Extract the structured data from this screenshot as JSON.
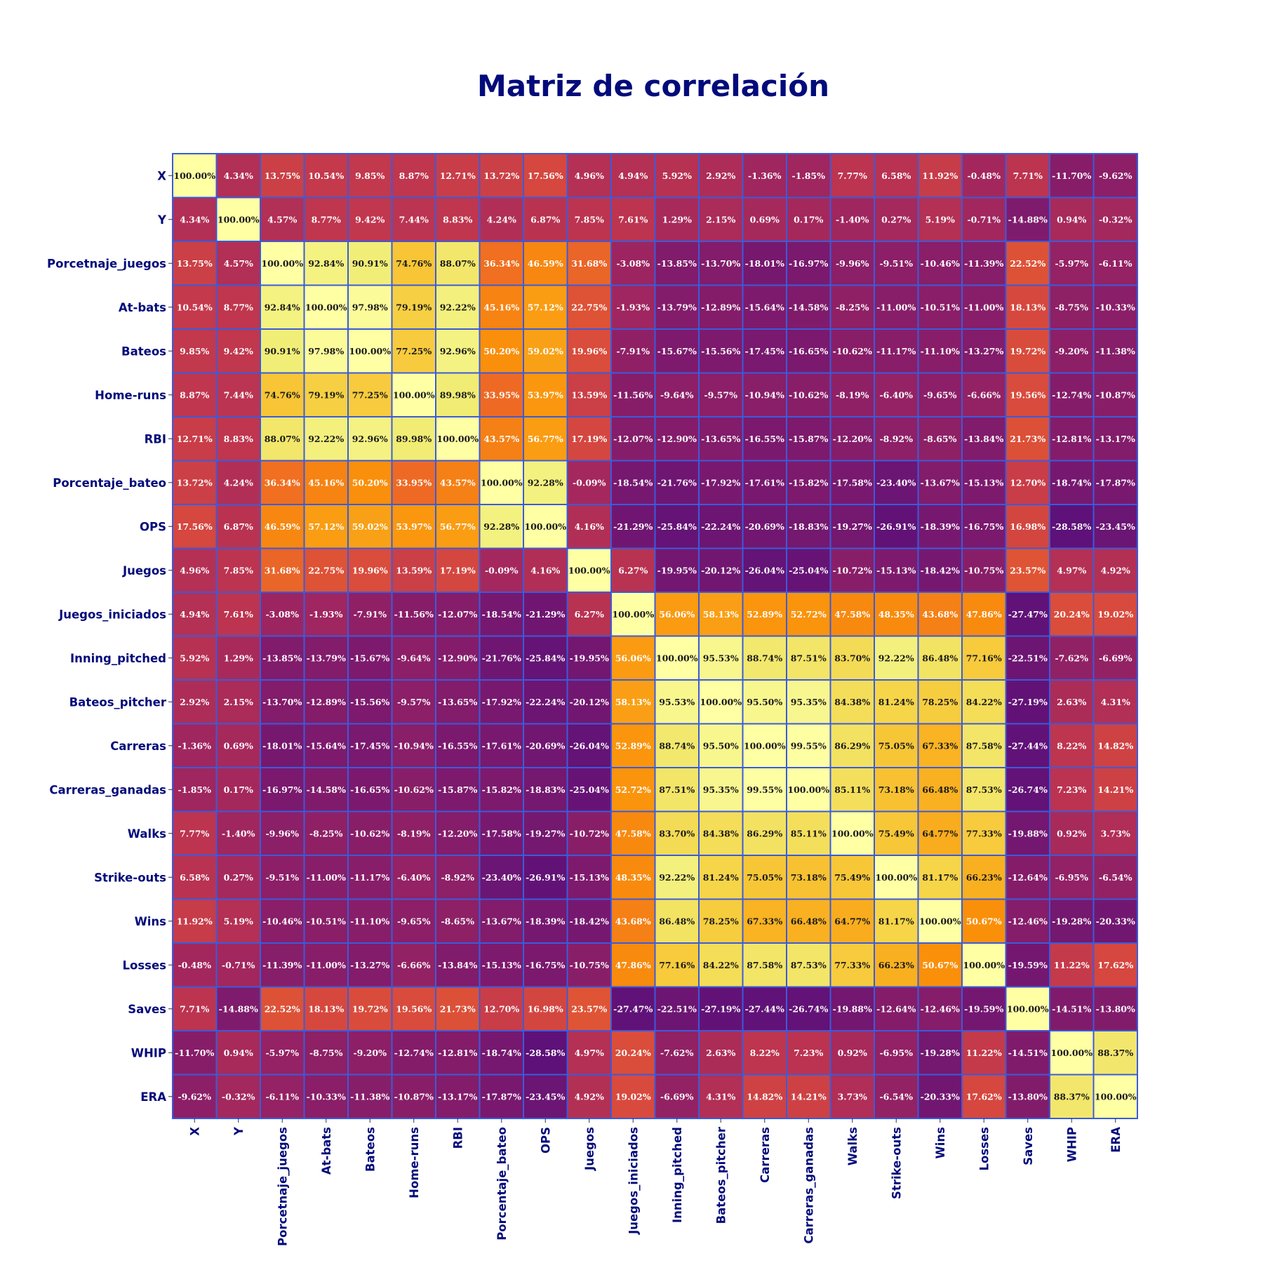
{
  "chart_data": {
    "type": "heatmap",
    "title": "Matriz de correlación",
    "xlabel": "",
    "ylabel": "",
    "colormap": "plasma-like (purple → red → orange → yellow)",
    "color_range": [
      -0.3,
      1.0
    ],
    "grid_color": "#3b5bdb",
    "title_color": "#020b7a",
    "label_color": "#020b7a",
    "value_format": "percent, 2 decimals",
    "labels": [
      "X",
      "Y",
      "Porcetnaje_juegos",
      "At-bats",
      "Bateos",
      "Home-runs",
      "RBI",
      "Porcentaje_bateo",
      "OPS",
      "Juegos",
      "Juegos_iniciados",
      "Inning_pitched",
      "Bateos_pitcher",
      "Carreras",
      "Carreras_ganadas",
      "Walks",
      "Strike-outs",
      "Wins",
      "Losses",
      "Saves",
      "WHIP",
      "ERA"
    ],
    "matrix": [
      [
        100.0,
        4.34,
        13.75,
        10.54,
        9.85,
        8.87,
        12.71,
        13.72,
        17.56,
        4.96,
        4.94,
        5.92,
        2.92,
        -1.36,
        -1.85,
        7.77,
        6.58,
        11.92,
        -0.48,
        7.71,
        -11.7,
        -9.62
      ],
      [
        4.34,
        100.0,
        4.57,
        8.77,
        9.42,
        7.44,
        8.83,
        4.24,
        6.87,
        7.85,
        7.61,
        1.29,
        2.15,
        0.69,
        0.17,
        -1.4,
        0.27,
        5.19,
        -0.71,
        -14.88,
        0.94,
        -0.32
      ],
      [
        13.75,
        4.57,
        100.0,
        92.84,
        90.91,
        74.76,
        88.07,
        36.34,
        46.59,
        31.68,
        -3.08,
        -13.85,
        -13.7,
        -18.01,
        -16.97,
        -9.96,
        -9.51,
        -10.46,
        -11.39,
        22.52,
        -5.97,
        -6.11
      ],
      [
        10.54,
        8.77,
        92.84,
        100.0,
        97.98,
        79.19,
        92.22,
        45.16,
        57.12,
        22.75,
        -1.93,
        -13.79,
        -12.89,
        -15.64,
        -14.58,
        -8.25,
        -11.0,
        -10.51,
        -11.0,
        18.13,
        -8.75,
        -10.33
      ],
      [
        9.85,
        9.42,
        90.91,
        97.98,
        100.0,
        77.25,
        92.96,
        50.2,
        59.02,
        19.96,
        -7.91,
        -15.67,
        -15.56,
        -17.45,
        -16.65,
        -10.62,
        -11.17,
        -11.1,
        -13.27,
        19.72,
        -9.2,
        -11.38
      ],
      [
        8.87,
        7.44,
        74.76,
        79.19,
        77.25,
        100.0,
        89.98,
        33.95,
        53.97,
        13.59,
        -11.56,
        -9.64,
        -9.57,
        -10.94,
        -10.62,
        -8.19,
        -6.4,
        -9.65,
        -6.66,
        19.56,
        -12.74,
        -10.87
      ],
      [
        12.71,
        8.83,
        88.07,
        92.22,
        92.96,
        89.98,
        100.0,
        43.57,
        56.77,
        17.19,
        -12.07,
        -12.9,
        -13.65,
        -16.55,
        -15.87,
        -12.2,
        -8.92,
        -8.65,
        -13.84,
        21.73,
        -12.81,
        -13.17
      ],
      [
        13.72,
        4.24,
        36.34,
        45.16,
        50.2,
        33.95,
        43.57,
        100.0,
        92.28,
        -0.09,
        -18.54,
        -21.76,
        -17.92,
        -17.61,
        -15.82,
        -17.58,
        -23.4,
        -13.67,
        -15.13,
        12.7,
        -18.74,
        -17.87
      ],
      [
        17.56,
        6.87,
        46.59,
        57.12,
        59.02,
        53.97,
        56.77,
        92.28,
        100.0,
        4.16,
        -21.29,
        -25.84,
        -22.24,
        -20.69,
        -18.83,
        -19.27,
        -26.91,
        -18.39,
        -16.75,
        16.98,
        -28.58,
        -23.45
      ],
      [
        4.96,
        7.85,
        31.68,
        22.75,
        19.96,
        13.59,
        17.19,
        -0.09,
        4.16,
        100.0,
        6.27,
        -19.95,
        -20.12,
        -26.04,
        -25.04,
        -10.72,
        -15.13,
        -18.42,
        -10.75,
        23.57,
        4.97,
        4.92
      ],
      [
        4.94,
        7.61,
        -3.08,
        -1.93,
        -7.91,
        -11.56,
        -12.07,
        -18.54,
        -21.29,
        6.27,
        100.0,
        56.06,
        58.13,
        52.89,
        52.72,
        47.58,
        48.35,
        43.68,
        47.86,
        -27.47,
        20.24,
        19.02
      ],
      [
        5.92,
        1.29,
        -13.85,
        -13.79,
        -15.67,
        -9.64,
        -12.9,
        -21.76,
        -25.84,
        -19.95,
        56.06,
        100.0,
        95.53,
        88.74,
        87.51,
        83.7,
        92.22,
        86.48,
        77.16,
        -22.51,
        -7.62,
        -6.69
      ],
      [
        2.92,
        2.15,
        -13.7,
        -12.89,
        -15.56,
        -9.57,
        -13.65,
        -17.92,
        -22.24,
        -20.12,
        58.13,
        95.53,
        100.0,
        95.5,
        95.35,
        84.38,
        81.24,
        78.25,
        84.22,
        -27.19,
        2.63,
        4.31
      ],
      [
        -1.36,
        0.69,
        -18.01,
        -15.64,
        -17.45,
        -10.94,
        -16.55,
        -17.61,
        -20.69,
        -26.04,
        52.89,
        88.74,
        95.5,
        100.0,
        99.55,
        86.29,
        75.05,
        67.33,
        87.58,
        -27.44,
        8.22,
        14.82
      ],
      [
        -1.85,
        0.17,
        -16.97,
        -14.58,
        -16.65,
        -10.62,
        -15.87,
        -15.82,
        -18.83,
        -25.04,
        52.72,
        87.51,
        95.35,
        99.55,
        100.0,
        85.11,
        73.18,
        66.48,
        87.53,
        -26.74,
        7.23,
        14.21
      ],
      [
        7.77,
        -1.4,
        -9.96,
        -8.25,
        -10.62,
        -8.19,
        -12.2,
        -17.58,
        -19.27,
        -10.72,
        47.58,
        83.7,
        84.38,
        86.29,
        85.11,
        100.0,
        75.49,
        64.77,
        77.33,
        -19.88,
        0.92,
        3.73
      ],
      [
        6.58,
        0.27,
        -9.51,
        -11.0,
        -11.17,
        -6.4,
        -8.92,
        -23.4,
        -26.91,
        -15.13,
        48.35,
        92.22,
        81.24,
        75.05,
        73.18,
        75.49,
        100.0,
        81.17,
        66.23,
        -12.64,
        -6.95,
        -6.54
      ],
      [
        11.92,
        5.19,
        -10.46,
        -10.51,
        -11.1,
        -9.65,
        -8.65,
        -13.67,
        -18.39,
        -18.42,
        43.68,
        86.48,
        78.25,
        67.33,
        66.48,
        64.77,
        81.17,
        100.0,
        50.67,
        -12.46,
        -19.28,
        -20.33
      ],
      [
        -0.48,
        -0.71,
        -11.39,
        -11.0,
        -13.27,
        -6.66,
        -13.84,
        -15.13,
        -16.75,
        -10.75,
        47.86,
        77.16,
        84.22,
        87.58,
        87.53,
        77.33,
        66.23,
        50.67,
        100.0,
        -19.59,
        11.22,
        17.62
      ],
      [
        7.71,
        -14.88,
        22.52,
        18.13,
        19.72,
        19.56,
        21.73,
        12.7,
        16.98,
        23.57,
        -27.47,
        -22.51,
        -27.19,
        -27.44,
        -26.74,
        -19.88,
        -12.64,
        -12.46,
        -19.59,
        100.0,
        -14.51,
        -13.8
      ],
      [
        -11.7,
        0.94,
        -5.97,
        -8.75,
        -9.2,
        -12.74,
        -12.81,
        -18.74,
        -28.58,
        4.97,
        20.24,
        -7.62,
        2.63,
        8.22,
        7.23,
        0.92,
        -6.95,
        -19.28,
        11.22,
        -14.51,
        100.0,
        88.37
      ],
      [
        -9.62,
        -0.32,
        -6.11,
        -10.33,
        -11.38,
        -10.87,
        -13.17,
        -17.87,
        -23.45,
        4.92,
        19.02,
        -6.69,
        4.31,
        14.82,
        14.21,
        3.73,
        -6.54,
        -20.33,
        17.62,
        -13.8,
        88.37,
        100.0
      ]
    ]
  }
}
